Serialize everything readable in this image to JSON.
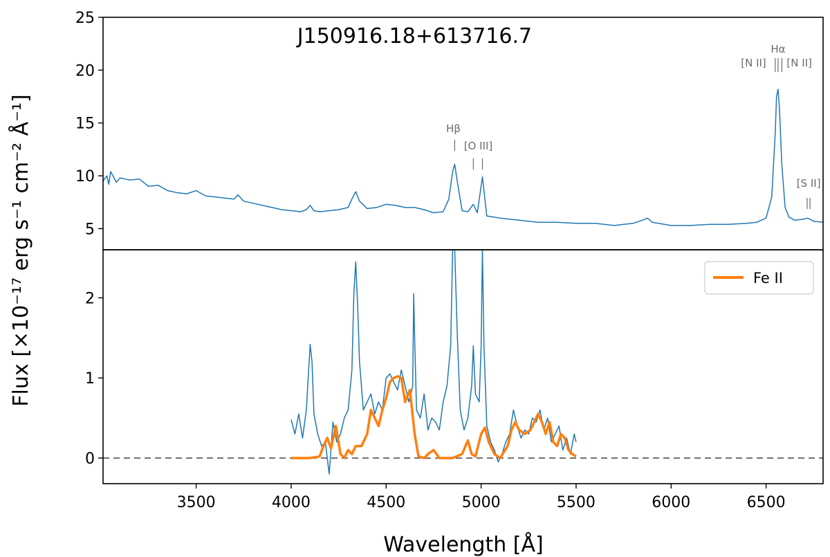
{
  "chart_data": [
    {
      "type": "line",
      "panel": "top",
      "title": "J150916.18+613716.7",
      "xlim": [
        3010,
        6800
      ],
      "ylim": [
        3,
        25
      ],
      "yticks": [
        5,
        10,
        15,
        20,
        25
      ],
      "grid": false,
      "series": [
        {
          "color": "#1f77b4",
          "x": [
            3010,
            3030,
            3040,
            3050,
            3080,
            3100,
            3150,
            3200,
            3250,
            3300,
            3350,
            3400,
            3450,
            3500,
            3550,
            3600,
            3650,
            3700,
            3720,
            3750,
            3800,
            3850,
            3900,
            3950,
            4000,
            4050,
            4080,
            4100,
            4120,
            4150,
            4200,
            4250,
            4300,
            4320,
            4340,
            4360,
            4400,
            4450,
            4500,
            4550,
            4600,
            4650,
            4700,
            4750,
            4800,
            4830,
            4850,
            4861,
            4875,
            4900,
            4930,
            4959,
            4980,
            5007,
            5030,
            5100,
            5200,
            5300,
            5400,
            5500,
            5600,
            5700,
            5800,
            5850,
            5876,
            5900,
            6000,
            6100,
            6200,
            6300,
            6400,
            6450,
            6500,
            6530,
            6548,
            6555,
            6563,
            6570,
            6583,
            6600,
            6620,
            6650,
            6700,
            6716,
            6731,
            6750,
            6800
          ],
          "values": [
            9.5,
            10.0,
            9.2,
            10.4,
            9.4,
            9.8,
            9.6,
            9.7,
            9.0,
            9.1,
            8.6,
            8.4,
            8.3,
            8.6,
            8.1,
            8.0,
            7.9,
            7.8,
            8.2,
            7.6,
            7.4,
            7.2,
            7.0,
            6.8,
            6.7,
            6.6,
            6.8,
            7.2,
            6.7,
            6.6,
            6.7,
            6.8,
            7.0,
            7.8,
            8.5,
            7.6,
            6.9,
            7.0,
            7.3,
            7.2,
            7.0,
            7.0,
            6.8,
            6.5,
            6.6,
            7.8,
            10.4,
            11.1,
            9.4,
            6.7,
            6.6,
            7.3,
            6.5,
            9.9,
            6.2,
            6.0,
            5.8,
            5.6,
            5.6,
            5.5,
            5.5,
            5.3,
            5.5,
            5.8,
            6.0,
            5.6,
            5.3,
            5.3,
            5.4,
            5.4,
            5.5,
            5.6,
            6.0,
            8.0,
            14.0,
            17.5,
            18.2,
            16.5,
            11.0,
            7.0,
            6.1,
            5.8,
            5.9,
            6.0,
            5.9,
            5.7,
            5.6
          ]
        }
      ],
      "annotations": [
        {
          "label": "Hβ",
          "x": 4861
        },
        {
          "label": "[O III]",
          "x": [
            4959,
            5007
          ]
        },
        {
          "label": "[N II]",
          "x": 6548
        },
        {
          "label": "Hα",
          "x": 6563
        },
        {
          "label": "[N II]",
          "x": 6583
        },
        {
          "label": "[S II]",
          "x": [
            6716,
            6731
          ]
        }
      ]
    },
    {
      "type": "line",
      "panel": "bottom",
      "xlim": [
        3010,
        6800
      ],
      "ylim": [
        -0.32,
        2.6
      ],
      "xticks": [
        3500,
        4000,
        4500,
        5000,
        5500,
        6000,
        6500
      ],
      "yticks": [
        0,
        1,
        2
      ],
      "xlabel": "Wavelength [Å]",
      "grid": false,
      "legend": {
        "position": "top-right"
      },
      "zero_line": {
        "y": 0,
        "style": "dashed",
        "color": "#707070"
      },
      "series": [
        {
          "name": "",
          "color": "#1f77b4",
          "x": [
            4000,
            4020,
            4040,
            4060,
            4080,
            4090,
            4100,
            4110,
            4120,
            4140,
            4160,
            4180,
            4200,
            4220,
            4240,
            4260,
            4280,
            4300,
            4320,
            4330,
            4340,
            4350,
            4360,
            4380,
            4400,
            4420,
            4440,
            4460,
            4480,
            4500,
            4520,
            4540,
            4560,
            4580,
            4600,
            4620,
            4640,
            4645,
            4650,
            4660,
            4680,
            4700,
            4720,
            4740,
            4760,
            4780,
            4800,
            4820,
            4840,
            4850,
            4861,
            4875,
            4890,
            4910,
            4930,
            4950,
            4959,
            4970,
            4990,
            5000,
            5007,
            5015,
            5030,
            5050,
            5070,
            5090,
            5110,
            5130,
            5150,
            5170,
            5190,
            5210,
            5230,
            5250,
            5270,
            5290,
            5310,
            5330,
            5350,
            5370,
            5390,
            5410,
            5430,
            5450,
            5470,
            5490,
            5500
          ],
          "values": [
            0.48,
            0.3,
            0.55,
            0.25,
            0.6,
            1.0,
            1.42,
            1.2,
            0.55,
            0.3,
            0.15,
            0.2,
            -0.2,
            0.45,
            0.2,
            0.3,
            0.5,
            0.6,
            1.1,
            2.05,
            2.45,
            1.9,
            1.2,
            0.6,
            0.7,
            0.8,
            0.55,
            0.7,
            0.6,
            1.0,
            1.05,
            0.95,
            0.85,
            1.1,
            0.9,
            0.7,
            0.9,
            2.05,
            1.5,
            0.6,
            0.5,
            0.8,
            0.35,
            0.5,
            0.45,
            0.35,
            0.7,
            0.9,
            1.4,
            2.6,
            2.6,
            1.5,
            0.6,
            0.35,
            0.5,
            0.9,
            1.4,
            0.8,
            0.7,
            1.4,
            2.6,
            1.4,
            0.4,
            0.2,
            0.1,
            -0.05,
            0.05,
            0.2,
            0.3,
            0.6,
            0.4,
            0.25,
            0.35,
            0.3,
            0.5,
            0.45,
            0.6,
            0.35,
            0.5,
            0.2,
            0.3,
            0.4,
            0.1,
            0.25,
            0.05,
            0.3,
            0.2
          ]
        },
        {
          "name": "Fe II",
          "color": "#ff7f0e",
          "x": [
            4000,
            4100,
            4150,
            4170,
            4190,
            4210,
            4235,
            4260,
            4280,
            4300,
            4320,
            4340,
            4370,
            4400,
            4420,
            4440,
            4460,
            4480,
            4500,
            4520,
            4540,
            4560,
            4580,
            4600,
            4625,
            4650,
            4670,
            4700,
            4720,
            4750,
            4780,
            4800,
            4850,
            4900,
            4930,
            4950,
            4970,
            5000,
            5020,
            5040,
            5070,
            5100,
            5140,
            5160,
            5180,
            5200,
            5230,
            5260,
            5280,
            5300,
            5320,
            5340,
            5360,
            5380,
            5400,
            5420,
            5440,
            5460,
            5480,
            5500
          ],
          "values": [
            0.0,
            0.0,
            0.02,
            0.15,
            0.25,
            0.12,
            0.4,
            0.05,
            0.0,
            0.1,
            0.05,
            0.15,
            0.15,
            0.3,
            0.6,
            0.5,
            0.4,
            0.6,
            0.75,
            0.95,
            1.0,
            1.02,
            1.0,
            0.7,
            0.85,
            0.3,
            0.02,
            0.0,
            0.05,
            0.1,
            0.0,
            0.0,
            0.0,
            0.05,
            0.22,
            0.05,
            0.02,
            0.3,
            0.38,
            0.2,
            0.05,
            0.0,
            0.15,
            0.35,
            0.45,
            0.35,
            0.3,
            0.35,
            0.45,
            0.55,
            0.45,
            0.3,
            0.45,
            0.2,
            0.15,
            0.3,
            0.25,
            0.1,
            0.05,
            0.02
          ]
        }
      ]
    }
  ],
  "figure": {
    "ylabel_shared": "Flux [×10⁻¹⁷ erg s⁻¹ cm⁻² Å⁻¹]"
  }
}
